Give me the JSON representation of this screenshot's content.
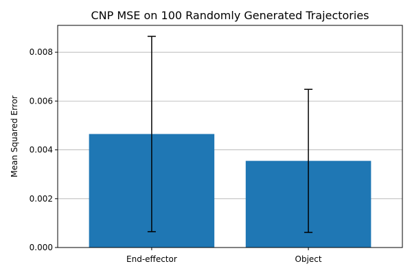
{
  "chart_data": {
    "type": "bar",
    "title": "CNP MSE on 100 Randomly Generated Trajectories",
    "xlabel": "",
    "ylabel": "Mean Squared Error",
    "categories": [
      "End-effector",
      "Object"
    ],
    "values": [
      0.00465,
      0.00355
    ],
    "error_low": [
      0.00065,
      0.00062
    ],
    "error_high": [
      0.00865,
      0.00648
    ],
    "ylim": [
      0,
      0.0091
    ],
    "yticks": [
      0,
      0.002,
      0.004,
      0.006,
      0.008
    ],
    "ytick_labels": [
      "0.000",
      "0.002",
      "0.004",
      "0.006",
      "0.008"
    ],
    "grid": "horizontal",
    "bar_color": "#1f77b4",
    "errorbar_color": "#000000",
    "grid_color": "#b0b0b0"
  }
}
